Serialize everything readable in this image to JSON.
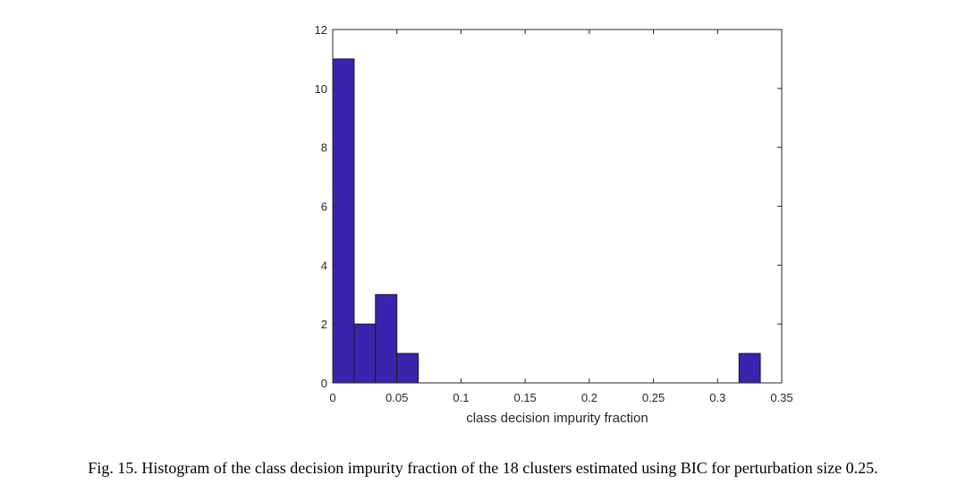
{
  "chart_data": {
    "type": "bar",
    "subtype": "histogram",
    "xlabel": "class decision impurity fraction",
    "ylabel": "",
    "xlim": [
      0,
      0.35
    ],
    "ylim": [
      0,
      12
    ],
    "xticks": [
      0,
      0.05,
      0.1,
      0.15,
      0.2,
      0.25,
      0.3,
      0.35
    ],
    "xtick_labels": [
      "0",
      "0.05",
      "0.1",
      "0.15",
      "0.2",
      "0.25",
      "0.3",
      "0.35"
    ],
    "yticks": [
      0,
      2,
      4,
      6,
      8,
      10,
      12
    ],
    "ytick_labels": [
      "0",
      "2",
      "4",
      "6",
      "8",
      "10",
      "12"
    ],
    "bins": [
      {
        "x0": 0.0,
        "x1": 0.0167,
        "count": 11
      },
      {
        "x0": 0.0167,
        "x1": 0.0333,
        "count": 2
      },
      {
        "x0": 0.0333,
        "x1": 0.05,
        "count": 3
      },
      {
        "x0": 0.05,
        "x1": 0.0667,
        "count": 1
      },
      {
        "x0": 0.3167,
        "x1": 0.3333,
        "count": 1
      }
    ],
    "bar_color": "#3a24ad",
    "grid": false
  },
  "caption": "Fig. 15.  Histogram of the class decision impurity fraction of the 18 clusters estimated using BIC for perturbation size 0.25."
}
